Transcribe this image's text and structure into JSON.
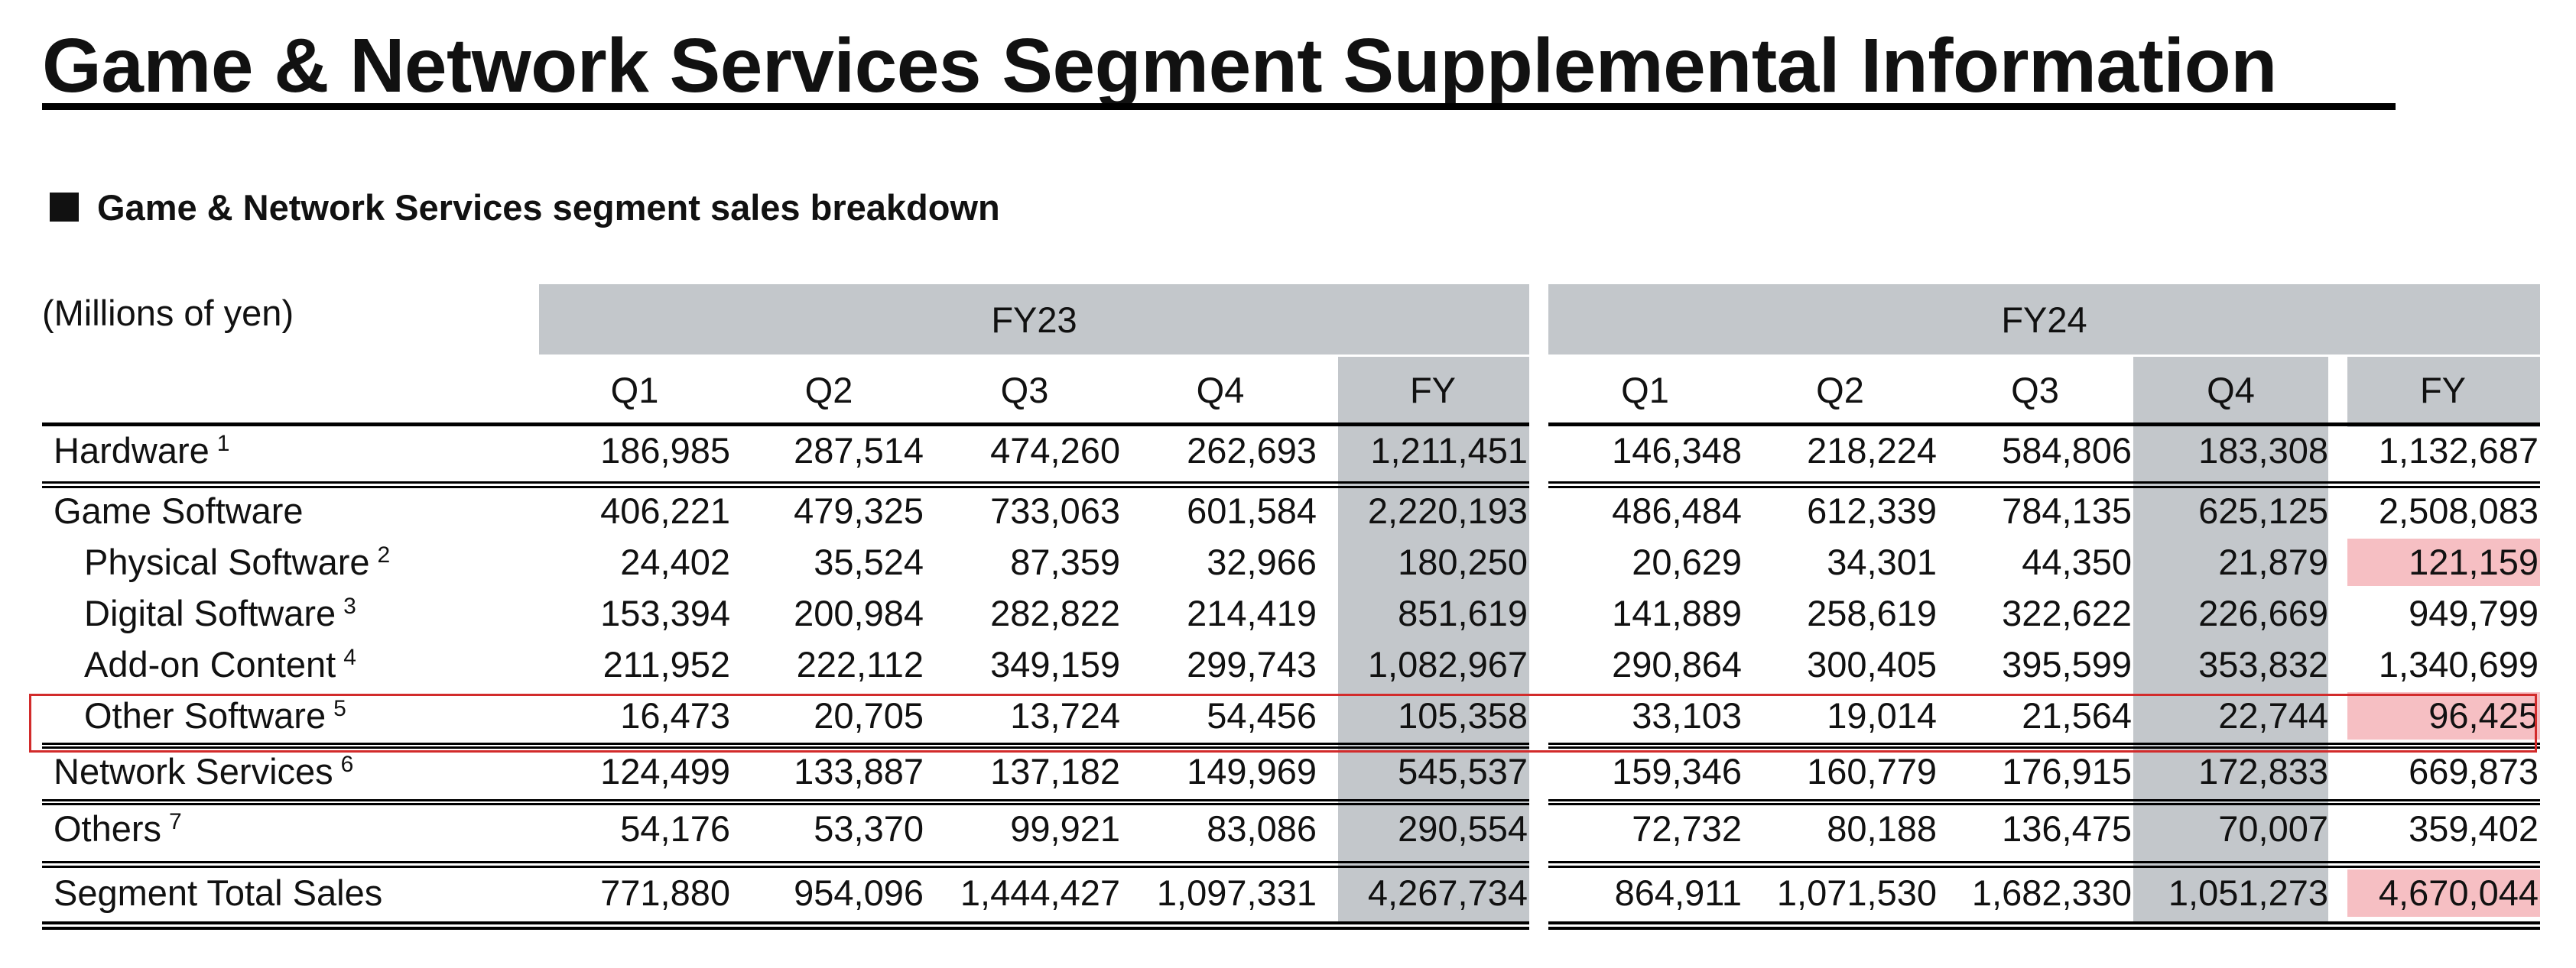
{
  "title": "Game & Network Services Segment Supplemental Information",
  "subheading": "Game & Network Services segment sales breakdown",
  "units": "(Millions of yen)",
  "fy_groups": [
    {
      "label": "FY23",
      "quarters": [
        "Q1",
        "Q2",
        "Q3",
        "Q4"
      ],
      "fy_label": "FY"
    },
    {
      "label": "FY24",
      "quarters": [
        "Q1",
        "Q2",
        "Q3",
        "Q4"
      ],
      "fy_label": "FY"
    }
  ],
  "rows": [
    {
      "label": "Hardware",
      "note": "1",
      "indent": false,
      "values": [
        "186,985",
        "287,514",
        "474,260",
        "262,693",
        "1,211,451",
        "146,348",
        "218,224",
        "584,806",
        "183,308",
        "1,132,687"
      ]
    },
    {
      "label": "Game Software",
      "note": "",
      "indent": false,
      "values": [
        "406,221",
        "479,325",
        "733,063",
        "601,584",
        "2,220,193",
        "486,484",
        "612,339",
        "784,135",
        "625,125",
        "2,508,083"
      ]
    },
    {
      "label": "Physical Software",
      "note": "2",
      "indent": true,
      "values": [
        "24,402",
        "35,524",
        "87,359",
        "32,966",
        "180,250",
        "20,629",
        "34,301",
        "44,350",
        "21,879",
        "121,159"
      ]
    },
    {
      "label": "Digital Software",
      "note": "3",
      "indent": true,
      "values": [
        "153,394",
        "200,984",
        "282,822",
        "214,419",
        "851,619",
        "141,889",
        "258,619",
        "322,622",
        "226,669",
        "949,799"
      ]
    },
    {
      "label": "Add-on Content",
      "note": "4",
      "indent": true,
      "values": [
        "211,952",
        "222,112",
        "349,159",
        "299,743",
        "1,082,967",
        "290,864",
        "300,405",
        "395,599",
        "353,832",
        "1,340,699"
      ]
    },
    {
      "label": "Other Software",
      "note": "5",
      "indent": true,
      "values": [
        "16,473",
        "20,705",
        "13,724",
        "54,456",
        "105,358",
        "33,103",
        "19,014",
        "21,564",
        "22,744",
        "96,425"
      ]
    },
    {
      "label": "Network Services",
      "note": "6",
      "indent": false,
      "values": [
        "124,499",
        "133,887",
        "137,182",
        "149,969",
        "545,537",
        "159,346",
        "160,779",
        "176,915",
        "172,833",
        "669,873"
      ]
    },
    {
      "label": "Others",
      "note": "7",
      "indent": false,
      "values": [
        "54,176",
        "53,370",
        "99,921",
        "83,086",
        "290,554",
        "72,732",
        "80,188",
        "136,475",
        "70,007",
        "359,402"
      ]
    },
    {
      "label": "Segment Total Sales",
      "note": "",
      "indent": false,
      "values": [
        "771,880",
        "954,096",
        "1,444,427",
        "1,097,331",
        "4,267,734",
        "864,911",
        "1,071,530",
        "1,682,330",
        "1,051,273",
        "4,670,044"
      ]
    }
  ],
  "highlighted_row": "Other Software",
  "colors": {
    "shade": "#c3c7cb",
    "pink_highlight": "#f6bfc3",
    "red_box": "#d22b2b"
  }
}
